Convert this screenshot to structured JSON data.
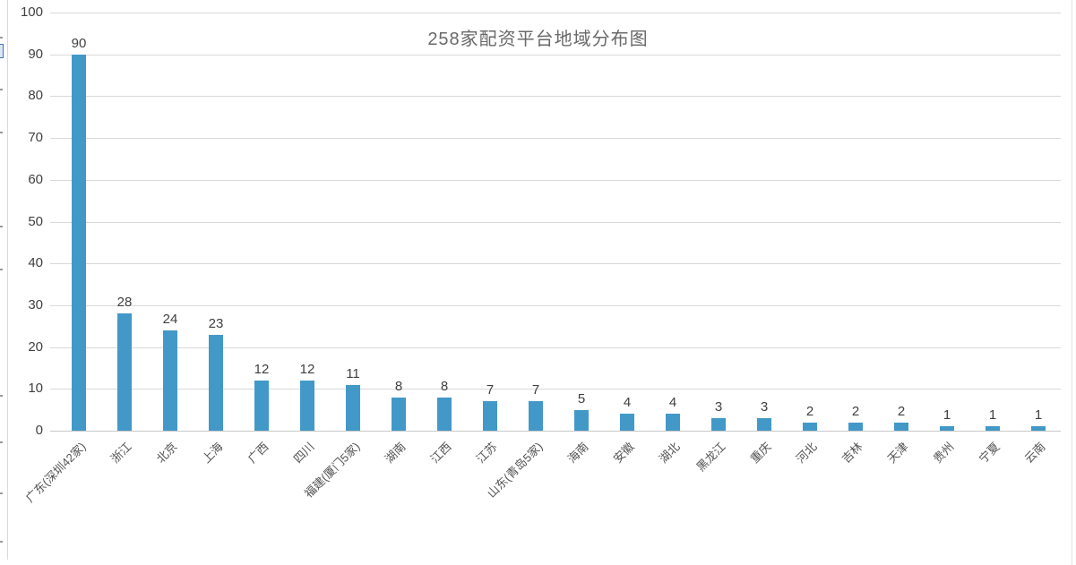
{
  "chart_data": {
    "type": "bar",
    "title": "258家配资平台地域分布图",
    "categories": [
      "广东(深圳42家)",
      "浙江",
      "北京",
      "上海",
      "广西",
      "四川",
      "福建(厦门5家)",
      "湖南",
      "江西",
      "江苏",
      "山东(青岛5家)",
      "海南",
      "安徽",
      "湖北",
      "黑龙江",
      "重庆",
      "河北",
      "吉林",
      "天津",
      "贵州",
      "宁夏",
      "云南"
    ],
    "values": [
      90,
      28,
      24,
      23,
      12,
      12,
      11,
      8,
      8,
      7,
      7,
      5,
      4,
      4,
      3,
      3,
      2,
      2,
      2,
      1,
      1,
      1
    ],
    "xlabel": "",
    "ylabel": "",
    "ylim": [
      0,
      100
    ],
    "y_ticks": [
      0,
      10,
      20,
      30,
      40,
      50,
      60,
      70,
      80,
      90,
      100
    ],
    "grid": true,
    "legend_position": "none",
    "bar_color": "#4299c8",
    "title_color": "#696969",
    "value_label_color": "#404040",
    "tick_label_color": "#404040",
    "category_label_color": "#535353",
    "gridline_color": "#d9d9d9",
    "baseline_color": "#c8c8c8"
  }
}
